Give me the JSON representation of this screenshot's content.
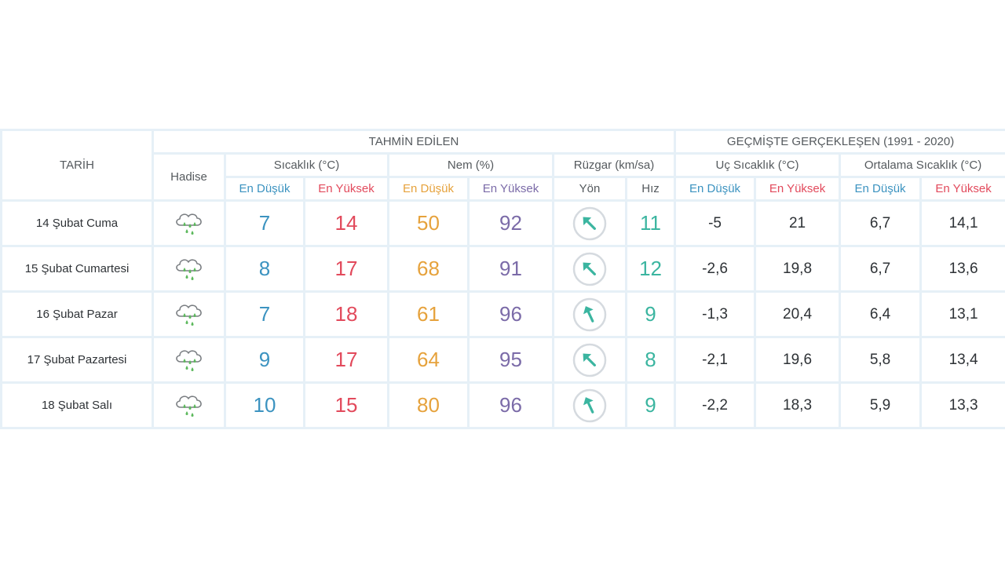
{
  "header": {
    "tarih": "TARİH",
    "tahmin": "TAHMİN EDİLEN",
    "gecmis": "GEÇMİŞTE GERÇEKLEŞEN (1991 - 2020)",
    "hadise": "Hadise",
    "sicaklik": "Sıcaklık (°C)",
    "nem": "Nem (%)",
    "ruzgar": "Rüzgar (km/sa)",
    "uc_sicaklik": "Uç Sıcaklık (°C)",
    "ortalama_sicaklik": "Ortalama Sıcaklık (°C)",
    "en_dusuk": "En Düşük",
    "en_yuksek": "En Yüksek",
    "yon": "Yön",
    "hiz": "Hız"
  },
  "colors": {
    "low": "#3c93c0",
    "high": "#e24a5c",
    "humidity_low": "#e6a23c",
    "humidity_high": "#7b6ba8",
    "wind_speed": "#3bb5a0",
    "rain_drop": "#5cb85c"
  },
  "rows": [
    {
      "date": "14 Şubat Cuma",
      "icon": "rain-cloud-icon",
      "temp_min": "7",
      "temp_max": "14",
      "hum_min": "50",
      "hum_max": "92",
      "wind_dir": "northwest-arrow-icon",
      "wind_speed": "11",
      "ext_min": "-5",
      "ext_max": "21",
      "avg_min": "6,7",
      "avg_max": "14,1"
    },
    {
      "date": "15 Şubat Cumartesi",
      "icon": "rain-cloud-icon",
      "temp_min": "8",
      "temp_max": "17",
      "hum_min": "68",
      "hum_max": "91",
      "wind_dir": "northwest-arrow-icon",
      "wind_speed": "12",
      "ext_min": "-2,6",
      "ext_max": "19,8",
      "avg_min": "6,7",
      "avg_max": "13,6"
    },
    {
      "date": "16 Şubat Pazar",
      "icon": "rain-cloud-icon",
      "temp_min": "7",
      "temp_max": "18",
      "hum_min": "61",
      "hum_max": "96",
      "wind_dir": "north-northwest-arrow-icon",
      "wind_speed": "9",
      "ext_min": "-1,3",
      "ext_max": "20,4",
      "avg_min": "6,4",
      "avg_max": "13,1"
    },
    {
      "date": "17 Şubat Pazartesi",
      "icon": "rain-cloud-icon",
      "temp_min": "9",
      "temp_max": "17",
      "hum_min": "64",
      "hum_max": "95",
      "wind_dir": "northwest-arrow-icon",
      "wind_speed": "8",
      "ext_min": "-2,1",
      "ext_max": "19,6",
      "avg_min": "5,8",
      "avg_max": "13,4"
    },
    {
      "date": "18 Şubat Salı",
      "icon": "rain-cloud-icon",
      "temp_min": "10",
      "temp_max": "15",
      "hum_min": "80",
      "hum_max": "96",
      "wind_dir": "north-northwest-arrow-icon",
      "wind_speed": "9",
      "ext_min": "-2,2",
      "ext_max": "18,3",
      "avg_min": "5,9",
      "avg_max": "13,3"
    }
  ]
}
